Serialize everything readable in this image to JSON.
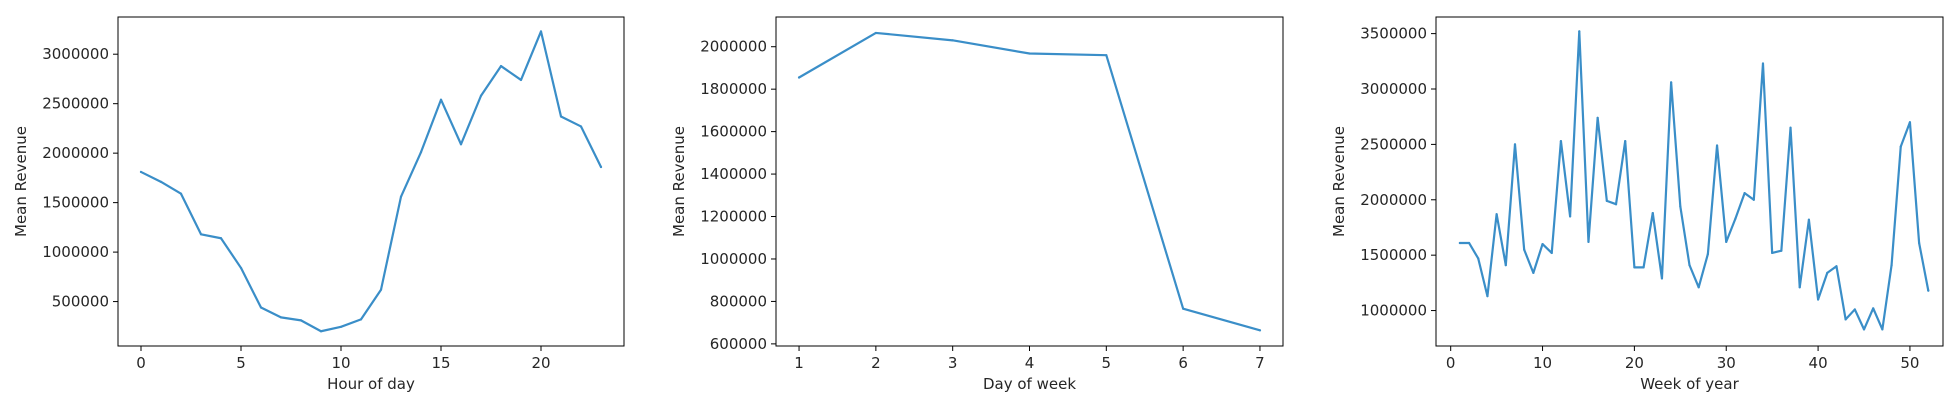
{
  "chart_data": [
    {
      "type": "line",
      "xlabel": "Hour of day",
      "ylabel": "Mean Revenue",
      "xlim": [
        -1.15,
        24.15
      ],
      "ylim": [
        51000,
        3376000
      ],
      "xticks": [
        0,
        5,
        10,
        15,
        20
      ],
      "yticks": [
        500000,
        1000000,
        1500000,
        2000000,
        2500000,
        3000000
      ],
      "grid": false,
      "line_color": "#3a8ec8",
      "series": [
        {
          "x": [
            0,
            1,
            2,
            3,
            4,
            5,
            6,
            7,
            8,
            9,
            10,
            11,
            12,
            13,
            14,
            15,
            16,
            17,
            18,
            19,
            20,
            21,
            22,
            23
          ],
          "values": [
            1810000,
            1710000,
            1590000,
            1180000,
            1140000,
            840000,
            440000,
            340000,
            310000,
            200000,
            245000,
            320000,
            620000,
            1560000,
            2010000,
            2540000,
            2090000,
            2580000,
            2880000,
            2740000,
            3230000,
            2370000,
            2270000,
            1860000
          ]
        }
      ]
    },
    {
      "type": "line",
      "xlabel": "Day of week",
      "ylabel": "Mean Revenue",
      "xlim": [
        0.7,
        7.3
      ],
      "ylim": [
        590000,
        2140000
      ],
      "xticks": [
        1,
        2,
        3,
        4,
        5,
        6,
        7
      ],
      "yticks": [
        600000,
        800000,
        1000000,
        1200000,
        1400000,
        1600000,
        1800000,
        2000000
      ],
      "grid": false,
      "line_color": "#3a8ec8",
      "series": [
        {
          "x": [
            1,
            2,
            3,
            4,
            5,
            6,
            7
          ],
          "values": [
            1855000,
            2065000,
            2030000,
            1968000,
            1960000,
            766000,
            664000
          ]
        }
      ]
    },
    {
      "type": "line",
      "xlabel": "Week of year",
      "ylabel": "Mean Revenue",
      "xlim": [
        -1.6,
        53.6
      ],
      "ylim": [
        680000,
        3650000
      ],
      "xticks": [
        0,
        10,
        20,
        30,
        40,
        50
      ],
      "yticks": [
        1000000,
        1500000,
        2000000,
        2500000,
        3000000,
        3500000
      ],
      "grid": false,
      "line_color": "#3a8ec8",
      "series": [
        {
          "x": [
            1,
            2,
            3,
            4,
            5,
            6,
            7,
            8,
            9,
            10,
            11,
            12,
            13,
            14,
            15,
            16,
            17,
            18,
            19,
            20,
            21,
            22,
            23,
            24,
            25,
            26,
            27,
            28,
            29,
            30,
            31,
            32,
            33,
            34,
            35,
            36,
            37,
            38,
            39,
            40,
            41,
            42,
            43,
            44,
            45,
            46,
            47,
            48,
            49,
            50,
            51,
            52
          ],
          "values": [
            1610000,
            1610000,
            1470000,
            1130000,
            1870000,
            1410000,
            2500000,
            1550000,
            1340000,
            1600000,
            1520000,
            2530000,
            1850000,
            3520000,
            1620000,
            2740000,
            1990000,
            1960000,
            2530000,
            1390000,
            1390000,
            1880000,
            1290000,
            3060000,
            1940000,
            1410000,
            1210000,
            1510000,
            2490000,
            1620000,
            1830000,
            2060000,
            2000000,
            3230000,
            1520000,
            1540000,
            2650000,
            1210000,
            1820000,
            1100000,
            1340000,
            1400000,
            920000,
            1010000,
            830000,
            1020000,
            830000,
            1410000,
            2480000,
            2700000,
            1610000,
            1180000
          ]
        }
      ]
    }
  ]
}
